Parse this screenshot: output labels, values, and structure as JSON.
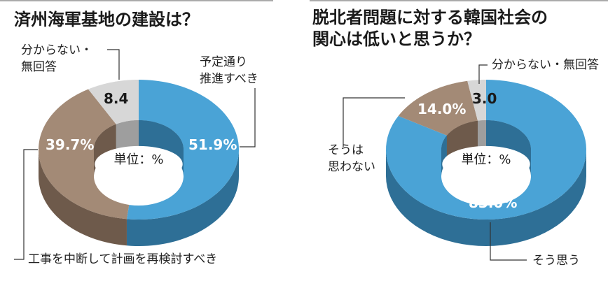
{
  "colors": {
    "blue_top": "#4aa3d6",
    "blue_side": "#2e6f96",
    "brown_top": "#a38a76",
    "brown_side": "#6e5a4b",
    "gray_top": "#d7d7d7",
    "gray_side": "#9e9e9e",
    "line": "#333333"
  },
  "chart_data": [
    {
      "type": "pie",
      "title": "済州海軍基地の建設は？",
      "unit_label": "単位：%",
      "slices": [
        {
          "label": [
            "予定通り",
            "推進すべき"
          ],
          "value": 51.9,
          "value_text": "51.9%",
          "color": "blue"
        },
        {
          "label": [
            "工事を中断して計画を再検討すべき"
          ],
          "value": 39.7,
          "value_text": "39.7%",
          "color": "brown"
        },
        {
          "label": [
            "分からない・",
            "無回答"
          ],
          "value": 8.4,
          "value_text": "8.4",
          "color": "gray"
        }
      ]
    },
    {
      "type": "pie",
      "title": [
        "脱北者問題に対する韓国社会の",
        "関心は低いと思うか？"
      ],
      "unit_label": "単位：%",
      "slices": [
        {
          "label": [
            "そう思う"
          ],
          "value": 83.0,
          "value_text": "83.0%",
          "color": "blue"
        },
        {
          "label": [
            "そうは",
            "思わない"
          ],
          "value": 14.0,
          "value_text": "14.0%",
          "color": "brown"
        },
        {
          "label": [
            "分からない・無回答"
          ],
          "value": 3.0,
          "value_text": "3.0",
          "color": "gray"
        }
      ]
    }
  ]
}
